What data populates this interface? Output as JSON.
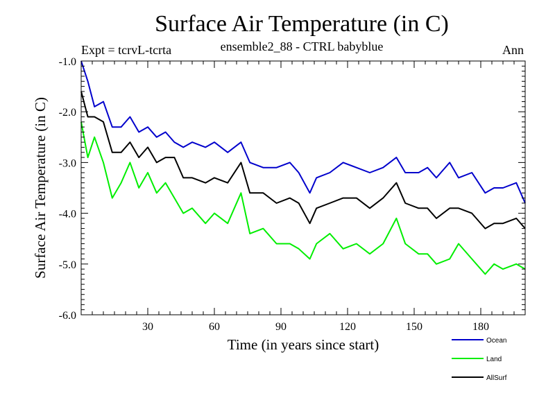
{
  "header": {
    "title": "Surface Air Temperature (in C)",
    "subtitle": "ensemble2_88 - CTRL babyblue",
    "expt_label": "Expt = tcrvL-tcrta",
    "period_label": "Ann"
  },
  "chart_data": {
    "type": "line",
    "title": "Surface Air Temperature (in C)",
    "xlabel": "Time (in years since start)",
    "ylabel": "Surface Air Temperature (in C)",
    "xlim": [
      0,
      200
    ],
    "ylim": [
      -6.0,
      -1.0
    ],
    "x_ticks": [
      30,
      60,
      90,
      120,
      150,
      180
    ],
    "y_ticks": [
      -1.0,
      -2.0,
      -3.0,
      -4.0,
      -5.0,
      -6.0
    ],
    "y_tick_labels": [
      "-1.0",
      "-2.0",
      "-3.0",
      "-4.0",
      "-5.0",
      "-6.0"
    ],
    "legend_position": "bottom-right",
    "grid": false,
    "series": [
      {
        "name": "Ocean",
        "color": "#0000cc",
        "points": [
          [
            0,
            -1.0
          ],
          [
            3,
            -1.4
          ],
          [
            6,
            -1.9
          ],
          [
            10,
            -1.8
          ],
          [
            14,
            -2.3
          ],
          [
            18,
            -2.3
          ],
          [
            22,
            -2.1
          ],
          [
            26,
            -2.4
          ],
          [
            30,
            -2.3
          ],
          [
            34,
            -2.5
          ],
          [
            38,
            -2.4
          ],
          [
            42,
            -2.6
          ],
          [
            46,
            -2.7
          ],
          [
            50,
            -2.6
          ],
          [
            56,
            -2.7
          ],
          [
            60,
            -2.6
          ],
          [
            66,
            -2.8
          ],
          [
            72,
            -2.6
          ],
          [
            76,
            -3.0
          ],
          [
            82,
            -3.1
          ],
          [
            88,
            -3.1
          ],
          [
            94,
            -3.0
          ],
          [
            98,
            -3.2
          ],
          [
            103,
            -3.6
          ],
          [
            106,
            -3.3
          ],
          [
            112,
            -3.2
          ],
          [
            118,
            -3.0
          ],
          [
            124,
            -3.1
          ],
          [
            130,
            -3.2
          ],
          [
            136,
            -3.1
          ],
          [
            142,
            -2.9
          ],
          [
            146,
            -3.2
          ],
          [
            152,
            -3.2
          ],
          [
            156,
            -3.1
          ],
          [
            160,
            -3.3
          ],
          [
            166,
            -3.0
          ],
          [
            170,
            -3.3
          ],
          [
            176,
            -3.2
          ],
          [
            182,
            -3.6
          ],
          [
            186,
            -3.5
          ],
          [
            190,
            -3.5
          ],
          [
            196,
            -3.4
          ],
          [
            200,
            -3.8
          ]
        ]
      },
      {
        "name": "Land",
        "color": "#00ee00",
        "points": [
          [
            0,
            -2.2
          ],
          [
            3,
            -2.9
          ],
          [
            6,
            -2.5
          ],
          [
            10,
            -3.0
          ],
          [
            14,
            -3.7
          ],
          [
            18,
            -3.4
          ],
          [
            22,
            -3.0
          ],
          [
            26,
            -3.5
          ],
          [
            30,
            -3.2
          ],
          [
            34,
            -3.6
          ],
          [
            38,
            -3.4
          ],
          [
            42,
            -3.7
          ],
          [
            46,
            -4.0
          ],
          [
            50,
            -3.9
          ],
          [
            56,
            -4.2
          ],
          [
            60,
            -4.0
          ],
          [
            66,
            -4.2
          ],
          [
            72,
            -3.6
          ],
          [
            76,
            -4.4
          ],
          [
            82,
            -4.3
          ],
          [
            88,
            -4.6
          ],
          [
            94,
            -4.6
          ],
          [
            98,
            -4.7
          ],
          [
            103,
            -4.9
          ],
          [
            106,
            -4.6
          ],
          [
            112,
            -4.4
          ],
          [
            118,
            -4.7
          ],
          [
            124,
            -4.6
          ],
          [
            130,
            -4.8
          ],
          [
            136,
            -4.6
          ],
          [
            142,
            -4.1
          ],
          [
            146,
            -4.6
          ],
          [
            152,
            -4.8
          ],
          [
            156,
            -4.8
          ],
          [
            160,
            -5.0
          ],
          [
            166,
            -4.9
          ],
          [
            170,
            -4.6
          ],
          [
            176,
            -4.9
          ],
          [
            182,
            -5.2
          ],
          [
            186,
            -5.0
          ],
          [
            190,
            -5.1
          ],
          [
            196,
            -5.0
          ],
          [
            200,
            -5.1
          ]
        ]
      },
      {
        "name": "AllSurf",
        "color": "#000000",
        "points": [
          [
            0,
            -1.6
          ],
          [
            3,
            -2.1
          ],
          [
            6,
            -2.1
          ],
          [
            10,
            -2.2
          ],
          [
            14,
            -2.8
          ],
          [
            18,
            -2.8
          ],
          [
            22,
            -2.6
          ],
          [
            26,
            -2.9
          ],
          [
            30,
            -2.7
          ],
          [
            34,
            -3.0
          ],
          [
            38,
            -2.9
          ],
          [
            42,
            -2.9
          ],
          [
            46,
            -3.3
          ],
          [
            50,
            -3.3
          ],
          [
            56,
            -3.4
          ],
          [
            60,
            -3.3
          ],
          [
            66,
            -3.4
          ],
          [
            72,
            -3.0
          ],
          [
            76,
            -3.6
          ],
          [
            82,
            -3.6
          ],
          [
            88,
            -3.8
          ],
          [
            94,
            -3.7
          ],
          [
            98,
            -3.8
          ],
          [
            103,
            -4.2
          ],
          [
            106,
            -3.9
          ],
          [
            112,
            -3.8
          ],
          [
            118,
            -3.7
          ],
          [
            124,
            -3.7
          ],
          [
            130,
            -3.9
          ],
          [
            136,
            -3.7
          ],
          [
            142,
            -3.4
          ],
          [
            146,
            -3.8
          ],
          [
            152,
            -3.9
          ],
          [
            156,
            -3.9
          ],
          [
            160,
            -4.1
          ],
          [
            166,
            -3.9
          ],
          [
            170,
            -3.9
          ],
          [
            176,
            -4.0
          ],
          [
            182,
            -4.3
          ],
          [
            186,
            -4.2
          ],
          [
            190,
            -4.2
          ],
          [
            196,
            -4.1
          ],
          [
            200,
            -4.3
          ]
        ]
      }
    ]
  }
}
